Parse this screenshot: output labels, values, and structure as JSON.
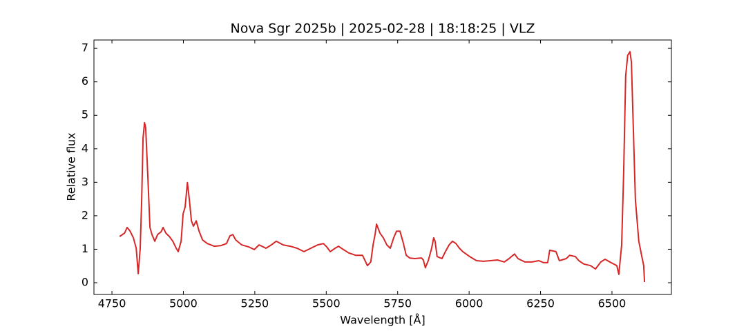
{
  "chart_data": {
    "type": "line",
    "title": "Nova Sgr 2025b | 2025-02-28 | 18:18:25 | VLZ",
    "x_label": "Wavelength [Å]",
    "y_label": "Relative flux",
    "xlim": [
      4687,
      6708
    ],
    "ylim": [
      -0.35,
      7.25
    ],
    "xticks": [
      4750,
      5000,
      5250,
      5500,
      5750,
      6000,
      6250,
      6500
    ],
    "yticks": [
      0,
      1,
      2,
      3,
      4,
      5,
      6,
      7
    ],
    "x": [
      4777,
      4794,
      4803,
      4813,
      4825,
      4835,
      4842,
      4849,
      4854,
      4859,
      4864,
      4868,
      4876,
      4883,
      4890,
      4900,
      4910,
      4922,
      4929,
      4939,
      4951,
      4963,
      4975,
      4982,
      4992,
      4999,
      5006,
      5014,
      5021,
      5028,
      5035,
      5045,
      5055,
      5067,
      5084,
      5108,
      5132,
      5151,
      5163,
      5173,
      5183,
      5204,
      5229,
      5248,
      5265,
      5289,
      5308,
      5325,
      5349,
      5374,
      5398,
      5422,
      5446,
      5470,
      5490,
      5502,
      5514,
      5531,
      5543,
      5560,
      5579,
      5603,
      5627,
      5644,
      5656,
      5664,
      5671,
      5676,
      5688,
      5700,
      5712,
      5724,
      5736,
      5746,
      5758,
      5768,
      5780,
      5792,
      5809,
      5833,
      5840,
      5847,
      5857,
      5869,
      5876,
      5881,
      5888,
      5905,
      5917,
      5930,
      5942,
      5954,
      5966,
      5978,
      6002,
      6026,
      6050,
      6075,
      6099,
      6123,
      6140,
      6159,
      6171,
      6195,
      6220,
      6244,
      6261,
      6275,
      6282,
      6304,
      6316,
      6340,
      6352,
      6372,
      6384,
      6401,
      6425,
      6442,
      6461,
      6476,
      6497,
      6517,
      6524,
      6534,
      6541,
      6548,
      6555,
      6563,
      6568,
      6575,
      6582,
      6594,
      6606,
      6611,
      6614
    ],
    "series": [
      {
        "name": "flux",
        "color": "#d62728",
        "values": [
          1.38,
          1.48,
          1.65,
          1.55,
          1.34,
          1.03,
          0.27,
          1.03,
          2.47,
          4.32,
          4.78,
          4.63,
          3.09,
          1.65,
          1.44,
          1.24,
          1.44,
          1.52,
          1.65,
          1.48,
          1.38,
          1.24,
          1.03,
          0.93,
          1.24,
          2.06,
          2.26,
          2.99,
          2.47,
          1.85,
          1.69,
          1.85,
          1.54,
          1.28,
          1.17,
          1.09,
          1.11,
          1.17,
          1.4,
          1.44,
          1.28,
          1.13,
          1.07,
          0.99,
          1.13,
          1.03,
          1.13,
          1.24,
          1.13,
          1.09,
          1.03,
          0.93,
          1.03,
          1.13,
          1.17,
          1.07,
          0.93,
          1.03,
          1.09,
          0.99,
          0.89,
          0.82,
          0.82,
          0.51,
          0.62,
          1.13,
          1.44,
          1.75,
          1.48,
          1.34,
          1.13,
          1.03,
          1.34,
          1.54,
          1.54,
          1.24,
          0.82,
          0.74,
          0.72,
          0.74,
          0.68,
          0.45,
          0.66,
          1.03,
          1.34,
          1.24,
          0.78,
          0.72,
          0.93,
          1.13,
          1.24,
          1.17,
          1.03,
          0.93,
          0.78,
          0.66,
          0.64,
          0.66,
          0.68,
          0.62,
          0.72,
          0.86,
          0.72,
          0.62,
          0.62,
          0.66,
          0.6,
          0.6,
          0.97,
          0.93,
          0.66,
          0.72,
          0.82,
          0.78,
          0.66,
          0.56,
          0.51,
          0.41,
          0.62,
          0.7,
          0.6,
          0.51,
          0.25,
          1.13,
          3.29,
          6.18,
          6.79,
          6.9,
          6.59,
          4.53,
          2.47,
          1.24,
          0.72,
          0.51,
          0.02
        ]
      }
    ]
  }
}
